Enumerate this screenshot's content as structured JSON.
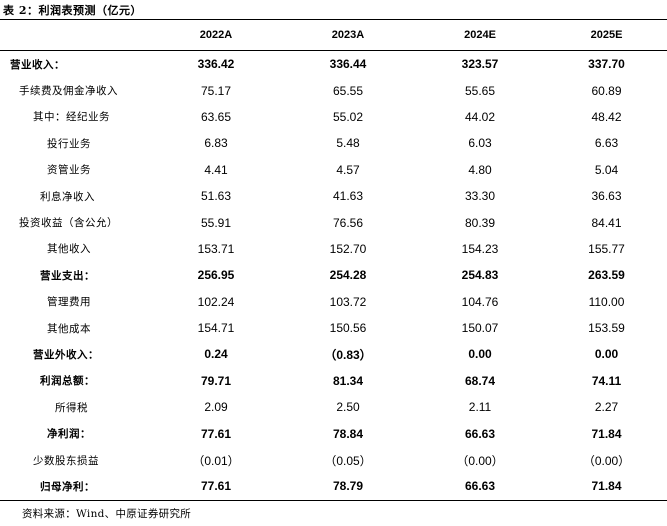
{
  "title": "表 2：利润表预测（亿元）",
  "columns": [
    "2022A",
    "2023A",
    "2024E",
    "2025E"
  ],
  "rows": [
    {
      "label": "营业收入：",
      "values": [
        "336.42",
        "336.44",
        "323.57",
        "337.70"
      ],
      "bold": true,
      "indent": 10
    },
    {
      "label": "手续费及佣金净收入",
      "values": [
        "75.17",
        "65.55",
        "55.65",
        "60.89"
      ],
      "bold": false,
      "indent": 19
    },
    {
      "label": "其中：经纪业务",
      "values": [
        "63.65",
        "55.02",
        "44.02",
        "48.42"
      ],
      "bold": false,
      "indent": 33
    },
    {
      "label": "投行业务",
      "values": [
        "6.83",
        "5.48",
        "6.03",
        "6.63"
      ],
      "bold": false,
      "indent": 47
    },
    {
      "label": "资管业务",
      "values": [
        "4.41",
        "4.57",
        "4.80",
        "5.04"
      ],
      "bold": false,
      "indent": 47
    },
    {
      "label": "利息净收入",
      "values": [
        "51.63",
        "41.63",
        "33.30",
        "36.63"
      ],
      "bold": false,
      "indent": 40
    },
    {
      "label": "投资收益（含公允）",
      "values": [
        "55.91",
        "76.56",
        "80.39",
        "84.41"
      ],
      "bold": false,
      "indent": 19
    },
    {
      "label": "其他收入",
      "values": [
        "153.71",
        "152.70",
        "154.23",
        "155.77"
      ],
      "bold": false,
      "indent": 47
    },
    {
      "label": "营业支出：",
      "values": [
        "256.95",
        "254.28",
        "254.83",
        "263.59"
      ],
      "bold": true,
      "indent": 40
    },
    {
      "label": "管理费用",
      "values": [
        "102.24",
        "103.72",
        "104.76",
        "110.00"
      ],
      "bold": false,
      "indent": 47
    },
    {
      "label": "其他成本",
      "values": [
        "154.71",
        "150.56",
        "150.07",
        "153.59"
      ],
      "bold": false,
      "indent": 47
    },
    {
      "label": "营业外收入：",
      "values": [
        "0.24",
        "（0.83）",
        "0.00",
        "0.00"
      ],
      "bold": true,
      "indent": 33
    },
    {
      "label": "利润总额：",
      "values": [
        "79.71",
        "81.34",
        "68.74",
        "74.11"
      ],
      "bold": true,
      "indent": 40
    },
    {
      "label": "所得税",
      "values": [
        "2.09",
        "2.50",
        "2.11",
        "2.27"
      ],
      "bold": false,
      "indent": 55
    },
    {
      "label": "净利润：",
      "values": [
        "77.61",
        "78.84",
        "66.63",
        "71.84"
      ],
      "bold": true,
      "indent": 47
    },
    {
      "label": "少数股东损益",
      "values": [
        "（0.01）",
        "（0.05）",
        "（0.00）",
        "（0.00）"
      ],
      "bold": false,
      "indent": 33
    },
    {
      "label": "归母净利：",
      "values": [
        "77.61",
        "78.79",
        "66.63",
        "71.84"
      ],
      "bold": true,
      "indent": 40
    }
  ],
  "source": "资料来源：Wind、中原证券研究所"
}
